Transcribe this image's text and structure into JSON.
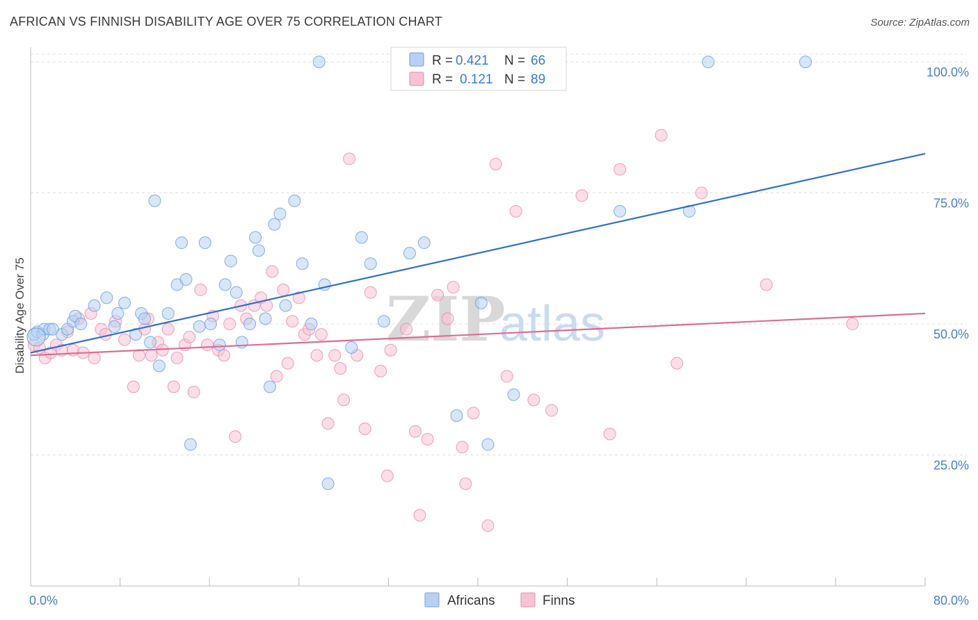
{
  "title": "AFRICAN VS FINNISH DISABILITY AGE OVER 75 CORRELATION CHART",
  "source": "Source: ZipAtlas.com",
  "watermark": {
    "zip": "ZIP",
    "atlas": "atlas"
  },
  "legend": {
    "rows": [
      {
        "r_label": "R = ",
        "r_value": "0.421",
        "n_label": "N = ",
        "n_value": "66"
      },
      {
        "r_label": "R = ",
        "r_value": "0.121",
        "n_label": "N = ",
        "n_value": "89"
      }
    ]
  },
  "bottom_legend": [
    "Africans",
    "Finns"
  ],
  "chart_data": {
    "type": "scatter",
    "title": "AFRICAN VS FINNISH DISABILITY AGE OVER 75 CORRELATION CHART",
    "xlabel": "",
    "ylabel": "Disability Age Over 75",
    "xlim": [
      0,
      80
    ],
    "ylim": [
      0,
      102
    ],
    "x_tick_labels": [
      "0.0%",
      "80.0%"
    ],
    "y_ticks": [
      25,
      50,
      75,
      100
    ],
    "y_tick_labels": [
      "25.0%",
      "50.0%",
      "75.0%",
      "100.0%"
    ],
    "grid": true,
    "legend_position": "top-center",
    "colors": {
      "africans_fill": "#b8d1f3",
      "africans_stroke": "#6e9fe0",
      "africans_line": "#2f6fd0",
      "finns_fill": "#f7c3d3",
      "finns_stroke": "#e68aa9",
      "finns_line": "#e06b94",
      "tick_text": "#4a7fd0",
      "grid": "#dddddd"
    },
    "series": [
      {
        "name": "Africans",
        "r": 0.421,
        "n": 66,
        "trend": {
          "x": [
            0,
            80
          ],
          "y": [
            44.5,
            82.5
          ]
        },
        "points": [
          [
            0.3,
            48
          ],
          [
            0.6,
            48.5
          ],
          [
            1.1,
            48
          ],
          [
            1.2,
            49
          ],
          [
            1.7,
            49
          ],
          [
            2.0,
            49
          ],
          [
            2.8,
            48
          ],
          [
            3.3,
            49
          ],
          [
            3.8,
            50.5
          ],
          [
            4.0,
            51.5
          ],
          [
            4.5,
            50
          ],
          [
            5.7,
            53.5
          ],
          [
            6.8,
            55
          ],
          [
            7.5,
            49.5
          ],
          [
            7.8,
            52
          ],
          [
            8.4,
            54
          ],
          [
            9.4,
            48
          ],
          [
            9.9,
            52
          ],
          [
            10.2,
            51
          ],
          [
            10.7,
            46.5
          ],
          [
            11.1,
            73.5
          ],
          [
            11.5,
            42
          ],
          [
            12.3,
            52
          ],
          [
            13.1,
            57.5
          ],
          [
            13.5,
            65.5
          ],
          [
            13.9,
            58.5
          ],
          [
            14.3,
            27
          ],
          [
            15.1,
            49.5
          ],
          [
            15.6,
            65.5
          ],
          [
            16.1,
            50
          ],
          [
            16.9,
            46
          ],
          [
            17.4,
            57.5
          ],
          [
            17.9,
            62
          ],
          [
            18.4,
            56
          ],
          [
            18.9,
            46.5
          ],
          [
            19.6,
            50
          ],
          [
            20.1,
            66.5
          ],
          [
            20.4,
            64
          ],
          [
            21.0,
            51
          ],
          [
            21.4,
            38
          ],
          [
            21.8,
            69
          ],
          [
            22.3,
            71
          ],
          [
            22.8,
            53.5
          ],
          [
            23.6,
            73.5
          ],
          [
            24.3,
            61.5
          ],
          [
            25.1,
            50
          ],
          [
            25.8,
            100
          ],
          [
            26.3,
            57.5
          ],
          [
            26.6,
            19.5
          ],
          [
            28.7,
            45.5
          ],
          [
            29.6,
            66.5
          ],
          [
            30.4,
            61.5
          ],
          [
            31.6,
            50.5
          ],
          [
            33.9,
            63.5
          ],
          [
            35.2,
            65.5
          ],
          [
            38.1,
            32.5
          ],
          [
            40.3,
            54
          ],
          [
            40.9,
            27
          ],
          [
            43.2,
            36.5
          ],
          [
            52.7,
            71.5
          ],
          [
            58.9,
            71.5
          ],
          [
            60.6,
            100
          ],
          [
            69.3,
            100
          ]
        ]
      },
      {
        "name": "Finns",
        "r": 0.121,
        "n": 89,
        "trend": {
          "x": [
            0,
            80
          ],
          "y": [
            44,
            52
          ]
        },
        "points": [
          [
            0.3,
            46
          ],
          [
            0.8,
            45.5
          ],
          [
            1.3,
            43.5
          ],
          [
            1.8,
            44.5
          ],
          [
            2.3,
            46
          ],
          [
            2.8,
            45
          ],
          [
            3.3,
            48.5
          ],
          [
            3.8,
            45
          ],
          [
            4.3,
            51
          ],
          [
            4.7,
            44.5
          ],
          [
            5.4,
            52
          ],
          [
            5.7,
            43.5
          ],
          [
            6.3,
            49
          ],
          [
            6.7,
            48
          ],
          [
            7.6,
            50.5
          ],
          [
            8.4,
            47
          ],
          [
            9.2,
            38
          ],
          [
            9.7,
            44
          ],
          [
            10.2,
            49
          ],
          [
            10.5,
            51
          ],
          [
            10.8,
            44
          ],
          [
            11.4,
            46.5
          ],
          [
            11.8,
            45
          ],
          [
            12.3,
            49
          ],
          [
            12.8,
            38
          ],
          [
            13.1,
            43.5
          ],
          [
            13.8,
            46
          ],
          [
            14.2,
            47.5
          ],
          [
            14.6,
            37
          ],
          [
            15.2,
            56.5
          ],
          [
            15.8,
            46
          ],
          [
            16.3,
            51.5
          ],
          [
            16.8,
            45
          ],
          [
            17.3,
            44
          ],
          [
            17.8,
            50
          ],
          [
            18.3,
            28.5
          ],
          [
            18.8,
            53.5
          ],
          [
            19.3,
            51
          ],
          [
            20.0,
            53.5
          ],
          [
            20.6,
            55
          ],
          [
            21.1,
            53.5
          ],
          [
            21.6,
            60
          ],
          [
            22.0,
            40
          ],
          [
            22.6,
            56.5
          ],
          [
            23.0,
            42.5
          ],
          [
            23.4,
            50.5
          ],
          [
            24.0,
            55
          ],
          [
            24.5,
            48
          ],
          [
            24.9,
            49
          ],
          [
            25.6,
            44
          ],
          [
            26.0,
            48
          ],
          [
            26.6,
            31
          ],
          [
            27.2,
            44
          ],
          [
            27.7,
            41.5
          ],
          [
            28.0,
            35.5
          ],
          [
            28.5,
            81.5
          ],
          [
            29.2,
            44
          ],
          [
            29.9,
            30
          ],
          [
            30.4,
            56
          ],
          [
            31.3,
            41
          ],
          [
            31.9,
            21
          ],
          [
            32.2,
            45
          ],
          [
            33.6,
            49
          ],
          [
            34.4,
            29.5
          ],
          [
            34.8,
            13.5
          ],
          [
            35.5,
            28
          ],
          [
            36.4,
            55.5
          ],
          [
            37.3,
            51
          ],
          [
            37.8,
            57
          ],
          [
            38.6,
            26.5
          ],
          [
            38.9,
            19.5
          ],
          [
            39.6,
            33
          ],
          [
            40.9,
            11.5
          ],
          [
            41.6,
            80.5
          ],
          [
            42.6,
            40
          ],
          [
            43.4,
            71.5
          ],
          [
            45.0,
            35.5
          ],
          [
            46.6,
            33.5
          ],
          [
            49.3,
            74.5
          ],
          [
            51.8,
            29
          ],
          [
            52.7,
            79.5
          ],
          [
            56.4,
            86
          ],
          [
            57.8,
            42.5
          ],
          [
            60.0,
            75
          ],
          [
            65.8,
            57.5
          ],
          [
            73.5,
            50
          ]
        ]
      }
    ]
  }
}
